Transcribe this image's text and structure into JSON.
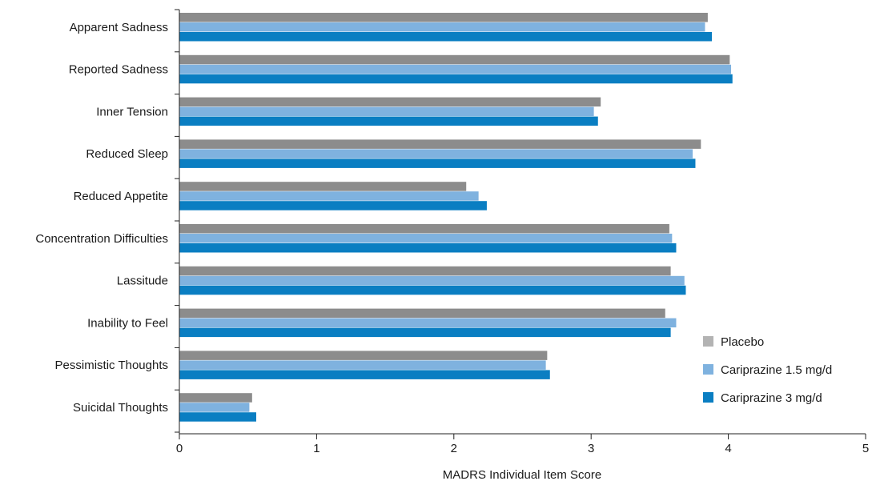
{
  "chart_data": {
    "type": "bar",
    "orientation": "horizontal",
    "title": "",
    "xlabel": "MADRS Individual Item Score",
    "ylabel": "",
    "xlim": [
      0,
      5
    ],
    "xticks": [
      "0",
      "1",
      "2",
      "3",
      "4",
      "5"
    ],
    "grid": false,
    "legend_position": "bottom-right",
    "categories": [
      "Apparent Sadness",
      "Reported Sadness",
      "Inner Tension",
      "Reduced Sleep",
      "Reduced Appetite",
      "Concentration Difficulties",
      "Lassitude",
      "Inability to Feel",
      "Pessimistic Thoughts",
      "Suicidal Thoughts"
    ],
    "series": [
      {
        "name": "Placebo",
        "color": "#8c8c8c",
        "legend_color": "#b3b3b3",
        "values": [
          3.85,
          4.01,
          3.07,
          3.8,
          2.09,
          3.57,
          3.58,
          3.54,
          2.68,
          0.53
        ]
      },
      {
        "name": "Cariprazine 1.5 mg/d",
        "color": "#7fb2df",
        "legend_color": "#7fb2df",
        "values": [
          3.83,
          4.02,
          3.02,
          3.74,
          2.18,
          3.59,
          3.68,
          3.62,
          2.67,
          0.51
        ]
      },
      {
        "name": "Cariprazine 3 mg/d",
        "color": "#0a7ec2",
        "legend_color": "#0a7ec2",
        "values": [
          3.88,
          4.03,
          3.05,
          3.76,
          2.24,
          3.62,
          3.69,
          3.58,
          2.7,
          0.56
        ]
      }
    ]
  }
}
